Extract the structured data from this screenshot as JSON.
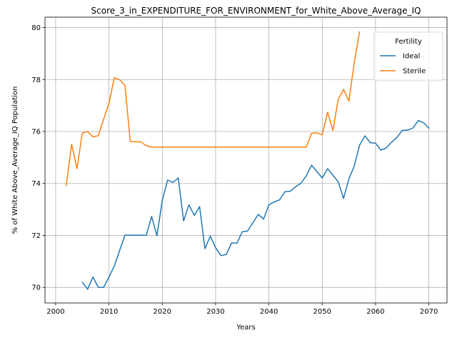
{
  "chart_data": {
    "type": "line",
    "title": "Score_3_in_EXPENDITURE_FOR_ENVIRONMENT_for_White_Above_Average_IQ",
    "xlabel": "Years",
    "ylabel": "% of White Above_Average_IQ Population",
    "xlim": [
      1998,
      2073.4
    ],
    "ylim": [
      69.4,
      80.4
    ],
    "xticks": [
      2000,
      2010,
      2020,
      2030,
      2040,
      2050,
      2060,
      2070
    ],
    "yticks": [
      70,
      72,
      74,
      76,
      78,
      80
    ],
    "grid": true,
    "legend": {
      "title": "Fertility",
      "placement": "top-right"
    },
    "series": [
      {
        "name": "Ideal",
        "color": "#1f77b4",
        "x": [
          2005,
          2006,
          2007,
          2008,
          2009,
          2010,
          2011,
          2012,
          2013,
          2014,
          2015,
          2016,
          2017,
          2018,
          2019,
          2020,
          2021,
          2022,
          2023,
          2024,
          2025,
          2026,
          2027,
          2028,
          2029,
          2030,
          2031,
          2032,
          2033,
          2034,
          2035,
          2036,
          2037,
          2038,
          2039,
          2040,
          2041,
          2042,
          2043,
          2044,
          2045,
          2046,
          2047,
          2048,
          2049,
          2050,
          2051,
          2052,
          2053,
          2054,
          2055,
          2056,
          2057,
          2058,
          2059,
          2060,
          2061,
          2062,
          2063,
          2064,
          2065,
          2066,
          2067,
          2068,
          2069,
          2070
        ],
        "values": [
          70.2,
          69.93,
          70.4,
          70.0,
          70.0,
          70.4,
          70.82,
          71.42,
          72.01,
          72.01,
          72.01,
          72.01,
          72.01,
          72.73,
          71.99,
          73.35,
          74.13,
          74.04,
          74.21,
          72.56,
          73.18,
          72.77,
          73.11,
          71.49,
          71.97,
          71.53,
          71.22,
          71.27,
          71.71,
          71.7,
          72.14,
          72.17,
          72.49,
          72.81,
          72.63,
          73.18,
          73.29,
          73.37,
          73.68,
          73.7,
          73.87,
          74.01,
          74.29,
          74.7,
          74.46,
          74.21,
          74.57,
          74.32,
          74.06,
          73.42,
          74.18,
          74.67,
          75.47,
          75.83,
          75.57,
          75.55,
          75.28,
          75.37,
          75.59,
          75.77,
          76.04,
          76.05,
          76.13,
          76.42,
          76.34,
          76.13
        ]
      },
      {
        "name": "Sterile",
        "color": "#ff7f0e",
        "x": [
          2002,
          2003,
          2004,
          2005,
          2006,
          2007,
          2008,
          2009,
          2010,
          2011,
          2012,
          2013,
          2014,
          2015,
          2016,
          2017,
          2018,
          2019,
          2020,
          2021,
          2022,
          2023,
          2024,
          2025,
          2026,
          2027,
          2028,
          2029,
          2030,
          2031,
          2032,
          2033,
          2034,
          2035,
          2036,
          2037,
          2038,
          2039,
          2040,
          2041,
          2042,
          2043,
          2044,
          2045,
          2046,
          2047,
          2048,
          2049,
          2050,
          2051,
          2052,
          2053,
          2054,
          2055,
          2056,
          2057
        ],
        "values": [
          73.92,
          75.51,
          74.57,
          75.94,
          76.0,
          75.79,
          75.84,
          76.47,
          77.08,
          78.07,
          77.99,
          77.77,
          75.61,
          75.6,
          75.6,
          75.45,
          75.4,
          75.4,
          75.4,
          75.4,
          75.4,
          75.4,
          75.4,
          75.4,
          75.4,
          75.4,
          75.4,
          75.4,
          75.4,
          75.4,
          75.4,
          75.4,
          75.4,
          75.4,
          75.4,
          75.4,
          75.4,
          75.4,
          75.4,
          75.4,
          75.4,
          75.4,
          75.4,
          75.4,
          75.4,
          75.4,
          75.93,
          75.95,
          75.87,
          76.74,
          76.04,
          77.24,
          77.62,
          77.17,
          78.64,
          79.83
        ]
      }
    ]
  }
}
